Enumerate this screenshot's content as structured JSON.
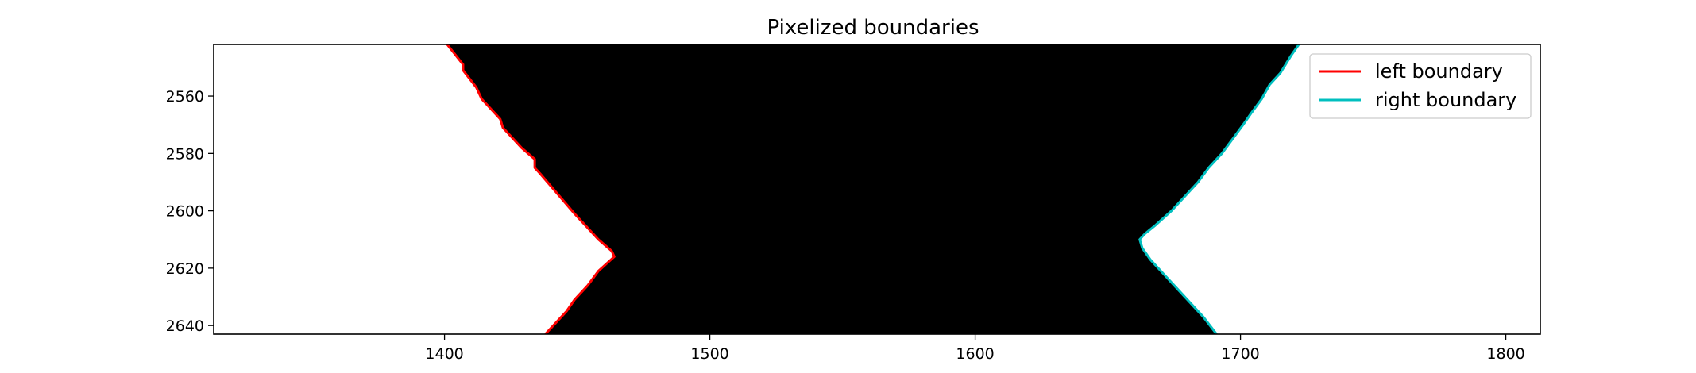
{
  "chart_data": {
    "type": "line",
    "title": "Pixelized boundaries",
    "xlabel": "",
    "ylabel": "",
    "xlim": [
      1313,
      1813
    ],
    "ylim": [
      2643,
      2542
    ],
    "y_inverted": true,
    "x_ticks": [
      1400,
      1500,
      1600,
      1700,
      1800
    ],
    "y_ticks": [
      2560,
      2580,
      2600,
      2620,
      2640
    ],
    "grid": false,
    "legend_position": "upper-right",
    "background_image": "binary mask: black band between the two boundaries, white outside",
    "series": [
      {
        "name": "left boundary",
        "color": "#ff0000",
        "points": [
          [
            1401,
            2542
          ],
          [
            1407,
            2549
          ],
          [
            1407,
            2551
          ],
          [
            1412,
            2557
          ],
          [
            1414,
            2561
          ],
          [
            1418,
            2565
          ],
          [
            1421,
            2568
          ],
          [
            1422,
            2571
          ],
          [
            1429,
            2578
          ],
          [
            1434,
            2582
          ],
          [
            1434,
            2585
          ],
          [
            1436,
            2587
          ],
          [
            1449,
            2601
          ],
          [
            1458,
            2610
          ],
          [
            1463,
            2614
          ],
          [
            1464,
            2616
          ],
          [
            1458,
            2621
          ],
          [
            1454,
            2626
          ],
          [
            1449,
            2631
          ],
          [
            1446,
            2635
          ],
          [
            1442,
            2639
          ],
          [
            1438,
            2643
          ]
        ]
      },
      {
        "name": "right boundary",
        "color": "#00bfbf",
        "points": [
          [
            1722,
            2542
          ],
          [
            1719,
            2546
          ],
          [
            1715,
            2552
          ],
          [
            1711,
            2556
          ],
          [
            1708,
            2561
          ],
          [
            1704,
            2566
          ],
          [
            1701,
            2570
          ],
          [
            1697,
            2575
          ],
          [
            1693,
            2580
          ],
          [
            1688,
            2585
          ],
          [
            1684,
            2590
          ],
          [
            1679,
            2595
          ],
          [
            1674,
            2600
          ],
          [
            1668,
            2605
          ],
          [
            1664,
            2608
          ],
          [
            1662,
            2610
          ],
          [
            1663,
            2613
          ],
          [
            1666,
            2617
          ],
          [
            1671,
            2622
          ],
          [
            1676,
            2627
          ],
          [
            1681,
            2632
          ],
          [
            1686,
            2637
          ],
          [
            1691,
            2643
          ]
        ]
      }
    ]
  }
}
